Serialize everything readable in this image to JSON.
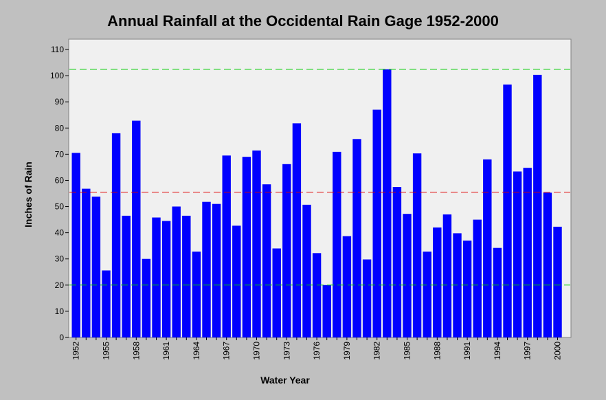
{
  "chart_data": {
    "type": "bar",
    "title": "Annual Rainfall at the Occidental Rain Gage 1952-2000",
    "xlabel": "Water Year",
    "ylabel": "Inches of Rain",
    "ylim": [
      0,
      110
    ],
    "yticks": [
      "0",
      "10",
      "20",
      "30",
      "40",
      "50",
      "60",
      "70",
      "80",
      "90",
      "100",
      "110"
    ],
    "xtick_labels": [
      "1952",
      "1955",
      "1958",
      "1961",
      "1964",
      "1967",
      "1970",
      "1973",
      "1976",
      "1979",
      "1982",
      "1985",
      "1988",
      "1991",
      "1994",
      "1997",
      "2000"
    ],
    "categories": [
      "1952",
      "1953",
      "1954",
      "1955",
      "1956",
      "1957",
      "1958",
      "1959",
      "1960",
      "1961",
      "1962",
      "1963",
      "1964",
      "1965",
      "1966",
      "1967",
      "1968",
      "1969",
      "1970",
      "1971",
      "1972",
      "1973",
      "1974",
      "1975",
      "1976",
      "1977",
      "1978",
      "1979",
      "1980",
      "1981",
      "1982",
      "1983",
      "1984",
      "1985",
      "1986",
      "1987",
      "1988",
      "1989",
      "1990",
      "1991",
      "1992",
      "1993",
      "1994",
      "1995",
      "1996",
      "1997",
      "1998",
      "1999",
      "2000"
    ],
    "values": [
      70.5,
      56.8,
      53.8,
      25.6,
      78.0,
      46.5,
      82.8,
      30.0,
      45.8,
      44.5,
      50.0,
      46.5,
      32.8,
      51.8,
      51.0,
      69.5,
      42.7,
      69.0,
      71.4,
      58.5,
      34.0,
      66.2,
      81.8,
      50.7,
      32.2,
      20.0,
      70.9,
      38.7,
      75.8,
      29.8,
      87.0,
      102.4,
      57.5,
      47.2,
      70.3,
      32.8,
      42.0,
      47.0,
      39.8,
      37.0,
      45.0,
      68.0,
      34.2,
      96.6,
      63.4,
      64.8,
      100.3,
      55.3,
      42.3
    ],
    "reference_lines": [
      {
        "value": 102.4,
        "color": "#00cc00"
      },
      {
        "value": 55.5,
        "color": "#dd0000"
      },
      {
        "value": 20.0,
        "color": "#00cc00"
      }
    ],
    "bar_color": "#0000ff",
    "plot_background": "#f0f0f0",
    "grid": false,
    "legend": "none"
  }
}
